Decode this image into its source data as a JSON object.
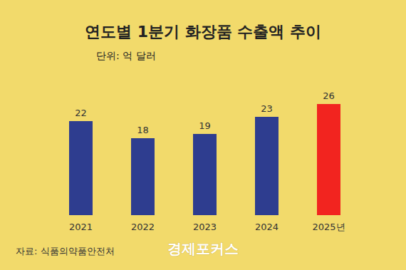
{
  "chart_data": {
    "type": "bar",
    "title": "연도별 1분기 화장품 수출액 추이",
    "subtitle": "단위: 억 달러",
    "categories": [
      "2021",
      "2022",
      "2023",
      "2024",
      "2025년"
    ],
    "values": [
      22,
      18,
      19,
      23,
      26
    ],
    "colors": [
      "#2E3D8F",
      "#2E3D8F",
      "#2E3D8F",
      "#2E3D8F",
      "#F2241F"
    ],
    "ylim": [
      0,
      26
    ],
    "grid": false,
    "data_labels": true,
    "tick_labels": "x",
    "annotations": [
      "자료: 식품의약품안전처",
      "경제포커스"
    ]
  }
}
